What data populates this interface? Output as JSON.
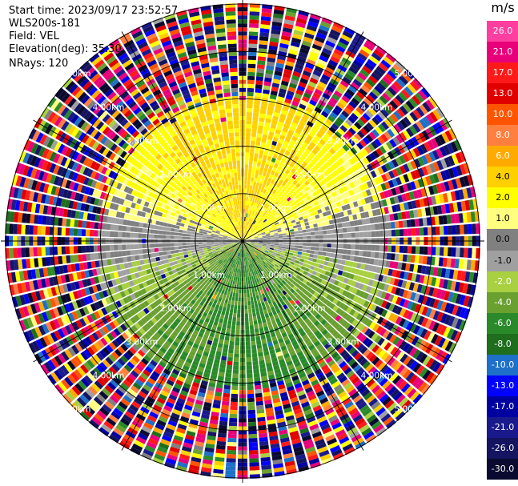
{
  "info": {
    "start_time": "Start time: 2023/09/17 23:52:57",
    "instrument": "WLS200s-181",
    "field": "Field: VEL",
    "elevation": "Elevation(deg): 35.30",
    "nrays": "NRays: 120"
  },
  "colorbar": {
    "unit": "m/s",
    "ticks": [
      "26.0",
      "21.0",
      "17.0",
      "13.0",
      "10.0",
      "8.0",
      "6.0",
      "4.0",
      "2.0",
      "1.0",
      "0.0",
      "-1.0",
      "-2.0",
      "-4.0",
      "-6.0",
      "-8.0",
      "-10.0",
      "-13.0",
      "-17.0",
      "-21.0",
      "-26.0",
      "-30.0"
    ],
    "colors": [
      "#ff3fa0",
      "#e8007a",
      "#ff1a1a",
      "#e00000",
      "#ff5500",
      "#ff7f3f",
      "#ffaa00",
      "#ffd000",
      "#ffff00",
      "#ffff80",
      "#808080",
      "#a0a0a0",
      "#a8d040",
      "#6aa030",
      "#2a8a2a",
      "#1e6e1e",
      "#1e70c8",
      "#0000ff",
      "#0000a0",
      "#1a1a8c",
      "#141460",
      "#0a0a30"
    ]
  },
  "chart_data": {
    "type": "heatmap",
    "title": "",
    "field": "VEL",
    "units": "m/s",
    "nrays": 120,
    "elevation_deg": 35.3,
    "range_rings_km": [
      1.0,
      2.0,
      3.0,
      4.0,
      5.0
    ],
    "ring_labels": [
      "1.00km",
      "2.00km",
      "3.00km",
      "4.00km",
      "5.00km"
    ],
    "max_range_km": 5.1,
    "velocity_pattern": "north half positive (~1 to 6 m/s, yellow/orange), south half negative (~-2 to -8 m/s, green); near-zero gray band along east-west axis; beyond ~3.1 km noisy all-color values",
    "axis_lines": "spokes every 30 degrees",
    "grid": true
  }
}
